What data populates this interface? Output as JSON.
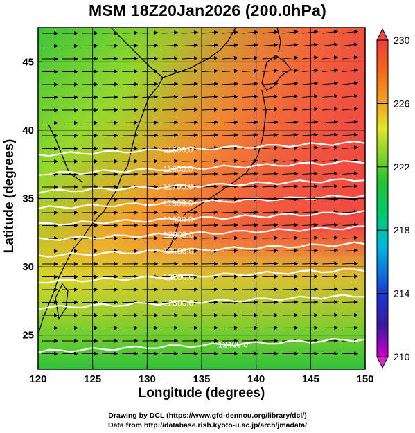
{
  "title": "MSM 18Z20Jan2026 (200.0hPa)",
  "xlabel": "Longitude (degrees)",
  "ylabel": "Latitude  (degrees)",
  "credits": [
    "Drawing by DCL (https://www.gfd-dennou.org/library/dcl/)",
    "Data from http://database.rish.kyoto-u.ac.jp/arch/jmadata/"
  ],
  "chart_data": {
    "type": "heatmap",
    "title": "MSM 18Z20Jan2026 (200.0hPa)",
    "xlabel": "Longitude (degrees)",
    "ylabel": "Latitude  (degrees)",
    "xlim": [
      120,
      150
    ],
    "ylim": [
      22.5,
      47.5
    ],
    "xticks": [
      120,
      125,
      130,
      135,
      140,
      145,
      150
    ],
    "yticks": [
      25,
      30,
      35,
      40,
      45
    ],
    "grid": true,
    "colorbar": {
      "min": 210,
      "max": 230,
      "ticks": [
        210,
        214,
        218,
        222,
        226,
        230
      ],
      "colors": [
        "#dd00cc",
        "#2a1aa0",
        "#1a44d0",
        "#00b4e0",
        "#00c870",
        "#22c032",
        "#7ad22a",
        "#d2ea2c",
        "#f0a020",
        "#f26818",
        "#ee3c3a"
      ]
    },
    "contours": [
      {
        "label": "11500.0",
        "lat": 38.2
      },
      {
        "label": "11600.0",
        "lat": 36.8
      },
      {
        "label": "11700.0",
        "lat": 35.5
      },
      {
        "label": "11800.0",
        "lat": 34.3
      },
      {
        "label": "11900.0",
        "lat": 33.1
      },
      {
        "label": "12000.0",
        "lat": 32.0
      },
      {
        "label": "12100.0",
        "lat": 30.8
      },
      {
        "label": "12200.0",
        "lat": 28.9
      },
      {
        "label": "12300.0",
        "lat": 27.0
      },
      {
        "label": "12400.0",
        "lat": 23.8
      }
    ]
  }
}
